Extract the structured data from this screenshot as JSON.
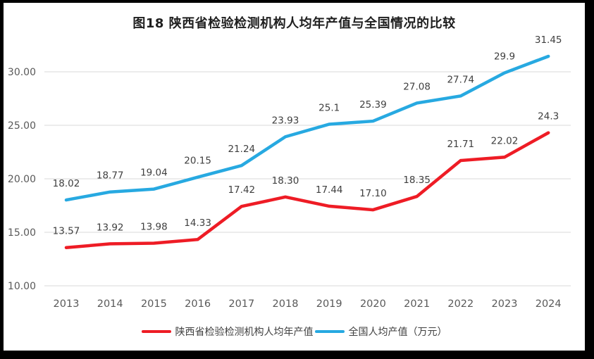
{
  "window": {
    "frame_color": "#000000",
    "background_color": "#ffffff"
  },
  "chart_data": {
    "type": "line",
    "title": "图18 陕西省检验检测机构人均年产值与全国情况的比较",
    "xlabel": "",
    "ylabel": "",
    "categories": [
      "2013",
      "2014",
      "2015",
      "2016",
      "2017",
      "2018",
      "2019",
      "2020",
      "2021",
      "2022",
      "2023",
      "2024"
    ],
    "series": [
      {
        "id": "shaanxi",
        "name": "陕西省检验检测机构人均年产值",
        "color": "#ee1c25",
        "values": [
          13.57,
          13.92,
          13.98,
          14.33,
          17.42,
          18.3,
          17.44,
          17.1,
          18.35,
          21.71,
          22.02,
          24.3
        ],
        "point_labels": [
          "13.57",
          "13.92",
          "13.98",
          "14.33",
          "17.42",
          "18.30",
          "17.44",
          "17.10",
          "18.35",
          "21.71",
          "22.02",
          "24.3"
        ]
      },
      {
        "id": "national",
        "name": "全国人均产值（万元）",
        "color": "#27a9e1",
        "values": [
          18.02,
          18.77,
          19.04,
          20.15,
          21.24,
          23.93,
          25.1,
          25.39,
          27.08,
          27.74,
          29.9,
          31.45
        ],
        "point_labels": [
          "18.02",
          "18.77",
          "19.04",
          "20.15",
          "21.24",
          "23.93",
          "25.1",
          "25.39",
          "27.08",
          "27.74",
          "29.9",
          "31.45"
        ]
      }
    ],
    "yticks": [
      10,
      15,
      20,
      25,
      30
    ],
    "ytick_labels": [
      "10.00",
      "15.00",
      "20.00",
      "25.00",
      "30.00"
    ],
    "ylim": [
      10,
      33
    ],
    "grid": true,
    "gridline_orientation": "horizontal",
    "legend_position": "bottom",
    "colors": {
      "grid": "#d9d9d9",
      "tick_label": "#595959",
      "data_label": "#3f3f3f",
      "title": "#1f1f1f"
    }
  }
}
